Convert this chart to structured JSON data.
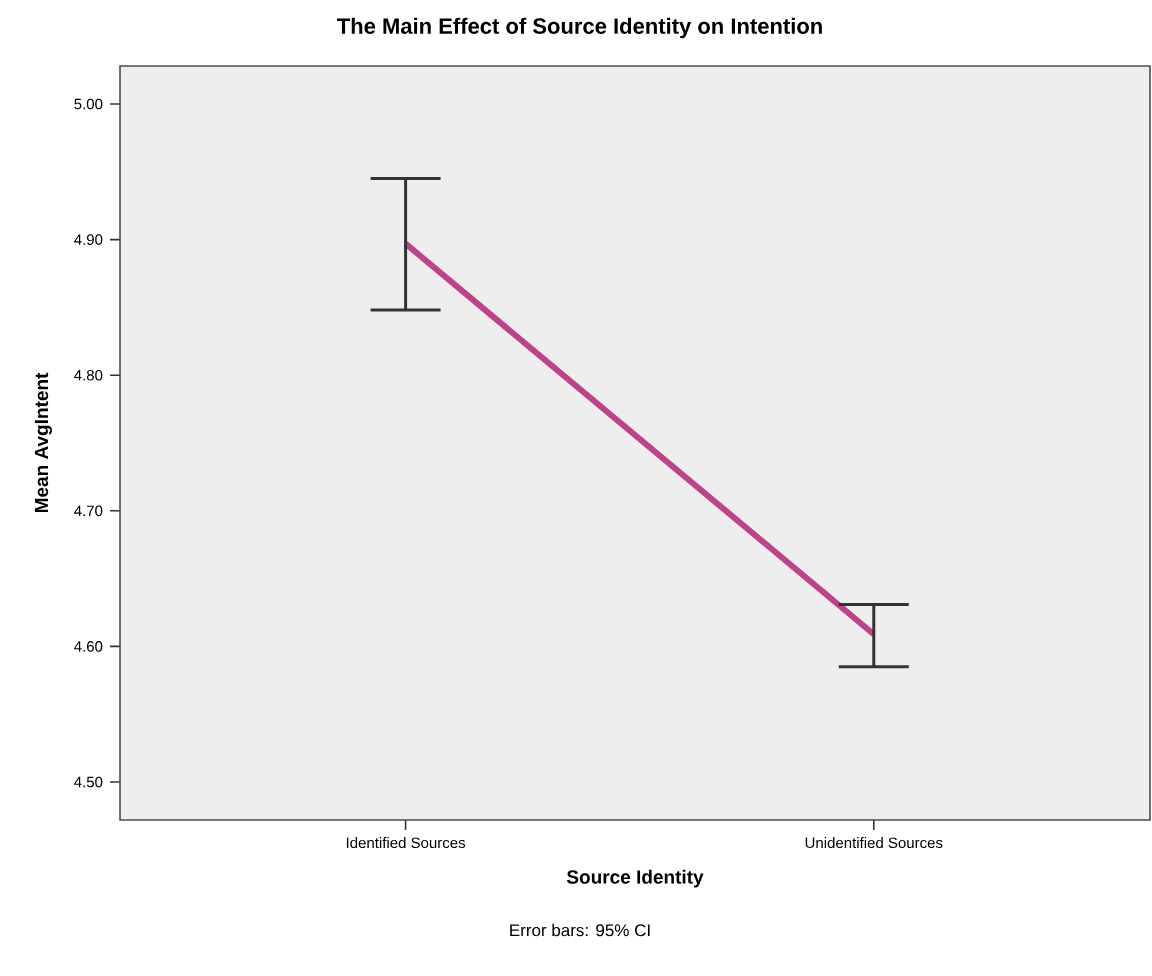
{
  "chart_data": {
    "type": "line",
    "title": "The Main Effect of Source Identity on Intention",
    "xlabel": "Source Identity",
    "ylabel": "Mean AvgIntent",
    "categories": [
      "Identified Sources",
      "Unidentified Sources"
    ],
    "series": [
      {
        "color": "#c0428a",
        "values": [
          4.897,
          4.609
        ],
        "errors": [
          [
            4.848,
            4.945
          ],
          [
            4.585,
            4.631
          ]
        ]
      }
    ],
    "ylim": [
      4.472,
      5.028
    ],
    "yticks": [
      {
        "value": 4.5,
        "label": "4.50"
      },
      {
        "value": 4.6,
        "label": "4.60"
      },
      {
        "value": 4.7,
        "label": "4.70"
      },
      {
        "value": 4.8,
        "label": "4.80"
      },
      {
        "value": 4.9,
        "label": "4.90"
      },
      {
        "value": 5.0,
        "label": "5.00"
      }
    ],
    "annotations": [
      "Error bars: 95% CI"
    ],
    "grid": false,
    "marker": "none",
    "line_style": "solid"
  }
}
